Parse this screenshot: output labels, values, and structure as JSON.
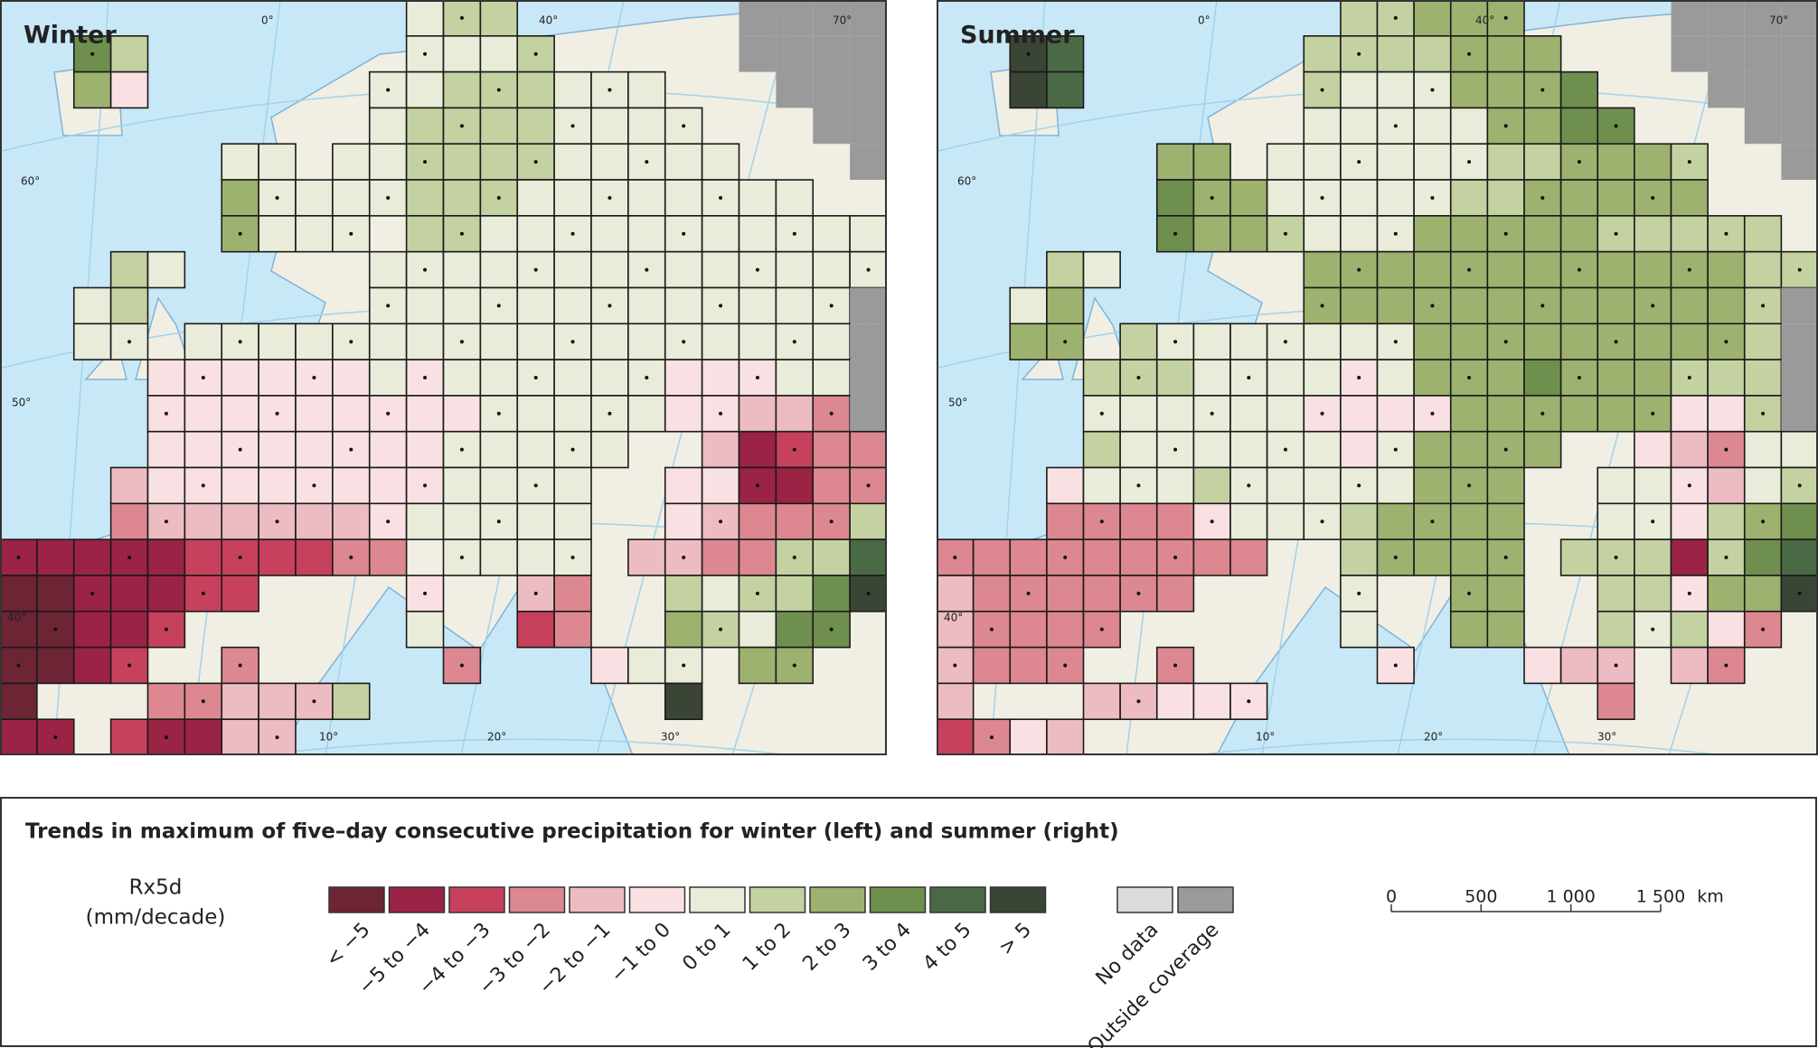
{
  "panels": [
    {
      "title": "Winter",
      "grid": [
        "...........ghh......nnnn",
        "..jh.......gggh.....nnnn",
        "..if......gghhhggg...nnn",
        "..........ghhhhgggg...nn",
        "......gg.gghhhhggggg...n",
        "......igggghhhgggggggg..",
        "......iggg.hhggggggggggg",
        "...hg.....gggggggggggggg",
        "..gh......gggggggggggggn",
        "..gg.ggggggggggggggggggn",
        "....ffffffgfggggggfffggn",
        "....fffffffffgggggffeedn",
        "....ffffffffggggg..ebcdd",
        "...effffffffgggg..ffbbdd",
        "...deeeeeefggggg..fedddh",
        "bbbbbccccdd.gggg.eeddhhk",
        "aabbbcc....f..ed..hghhjl",
        "aabbc......g..cd..ihgjj.",
        "aabc..d.....d...fgg.ii..",
        "a...ddeeeh........l.....",
        "bb.cbbee................"
      ],
      "graticule_labels": [
        "0°",
        "40°",
        "70°",
        "60°",
        "50°",
        "40°",
        "10°",
        "20°",
        "30°"
      ]
    },
    {
      "title": "Summer",
      "grid": [
        "...........hhiii....nnnn",
        "..lk......hhhhiii...nnnn",
        "..lk......hgggiiij...nnn",
        "..........gggggiijj...nn",
        "......ii.gggggghhiiih..n",
        "......jiiggggghhiiiii...",
        "......jiihgggiiiiihhhhh.",
        "...hg.....iiiiiiiiiiiihh",
        "..gi......iiiiiiiiiiiihn",
        "..ii.hgggggggiiiiiiiiihn",
        "....hhhggggfgiiijiiihhhn",
        "....ggggggffffiiiiiiffhn",
        "....hggggggfgiiii..fedgg",
        "...fggghgggggiii..ggfegh",
        "...ddddfggghiiii..ggfhij",
        "ddddddddd..hiiii.hhhbhjk",
        "edddddd....g..ii..hhfiil",
        "edddd......g..ii..hghfd.",
        "eddd..d.....f...fee.ed..",
        "e...eefff.........d.....",
        "cdfe...................."
      ],
      "graticule_labels": [
        "0°",
        "40°",
        "70°",
        "60°",
        "50°",
        "40°",
        "10°",
        "20°",
        "30°"
      ]
    }
  ],
  "legend": {
    "title": "Trends in maximum of five–day consecutive precipitation for winter (left) and summer (right)",
    "unit": [
      "Rx5d",
      "(mm/decade)"
    ],
    "classes": [
      {
        "label": "< −5",
        "color": "#6d2435"
      },
      {
        "label": "−5 to −4",
        "color": "#9b2346"
      },
      {
        "label": "−4 to −3",
        "color": "#c8415c"
      },
      {
        "label": "−3 to −2",
        "color": "#dd8890"
      },
      {
        "label": "−2 to −1",
        "color": "#edbcc3"
      },
      {
        "label": "−1 to 0",
        "color": "#f9e1e3"
      },
      {
        "label": "0 to 1",
        "color": "#e8ecd9"
      },
      {
        "label": "1 to 2",
        "color": "#c4d2a2"
      },
      {
        "label": "2 to 3",
        "color": "#9db26f"
      },
      {
        "label": "3 to 4",
        "color": "#6f8f4f"
      },
      {
        "label": "4 to 5",
        "color": "#4a6a45"
      },
      {
        "label": "> 5",
        "color": "#3b4535"
      },
      {
        "label": "No data",
        "color": "#dcdcdc"
      },
      {
        "label": "Outside coverage",
        "color": "#9a9a9a"
      }
    ]
  },
  "scale_bar": {
    "ticks": [
      0,
      500,
      {
        "value": 1000,
        "label": "1 000"
      },
      {
        "value": 1500,
        "label": "1 500"
      }
    ],
    "unit": "km"
  }
}
